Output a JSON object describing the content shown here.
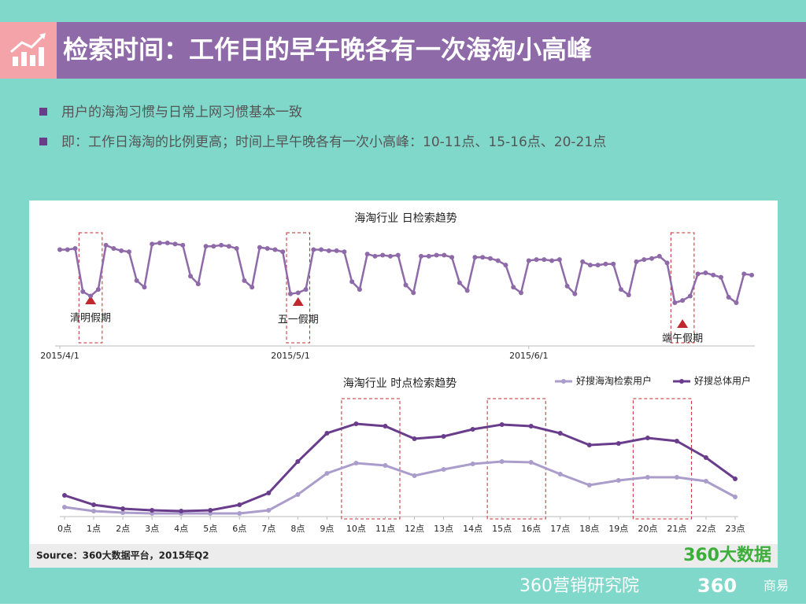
{
  "header": {
    "title": "检索时间：工作日的早午晚各有一次海淘小高峰"
  },
  "bullets": [
    "用户的海淘习惯与日常上网习惯基本一致",
    "即：工作日海淘的比例更高；时间上早午晚各有一次小高峰：10-11点、15-16点、20-21点"
  ],
  "source": "Source：360大数据平台，2015年Q2",
  "logo": "360大数据",
  "footer": [
    "360营销研究院",
    "360",
    "商易"
  ],
  "chart_data": [
    {
      "type": "line",
      "title": "海淘行业 日检索趋势",
      "color": "#8e6aa8",
      "categories": [
        "2015/4/1",
        null,
        null,
        null,
        null,
        null,
        null,
        null,
        null,
        null,
        null,
        null,
        null,
        null,
        null,
        null,
        null,
        null,
        null,
        null,
        null,
        null,
        null,
        null,
        null,
        null,
        null,
        null,
        null,
        null,
        "2015/5/1",
        null,
        null,
        null,
        null,
        null,
        null,
        null,
        null,
        null,
        null,
        null,
        null,
        null,
        null,
        null,
        null,
        null,
        null,
        null,
        null,
        null,
        null,
        null,
        null,
        null,
        null,
        null,
        null,
        null,
        null,
        "2015/6/1",
        null,
        null,
        null,
        null,
        null,
        null,
        null,
        null,
        null,
        null,
        null,
        null,
        null,
        null,
        null,
        null,
        null,
        null,
        null,
        null,
        null,
        null,
        null,
        null,
        null,
        null,
        null,
        null,
        null
      ],
      "values": [
        86,
        86,
        87,
        48,
        44,
        50,
        90,
        87,
        85,
        84,
        58,
        52,
        91,
        92,
        92,
        91,
        90,
        62,
        55,
        89,
        89,
        90,
        89,
        87,
        58,
        52,
        88,
        87,
        86,
        84,
        46,
        47,
        50,
        86,
        86,
        85,
        85,
        84,
        57,
        50,
        82,
        80,
        81,
        80,
        81,
        54,
        47,
        80,
        80,
        81,
        81,
        79,
        56,
        49,
        79,
        79,
        78,
        76,
        72,
        52,
        47,
        76,
        77,
        77,
        76,
        77,
        53,
        46,
        75,
        72,
        72,
        73,
        73,
        50,
        45,
        75,
        77,
        78,
        80,
        74,
        38,
        40,
        44,
        64,
        65,
        63,
        61,
        43,
        38,
        64,
        63
      ],
      "annotations": [
        "清明假期",
        "五一假期",
        "端午假期"
      ]
    },
    {
      "type": "line",
      "title": "海淘行业 时点检索趋势",
      "categories": [
        "0点",
        "1点",
        "2点",
        "3点",
        "4点",
        "5点",
        "6点",
        "7点",
        "8点",
        "9点",
        "10点",
        "11点",
        "12点",
        "13点",
        "14点",
        "15点",
        "16点",
        "17点",
        "18点",
        "19点",
        "20点",
        "21点",
        "22点",
        "23点"
      ],
      "series": [
        {
          "name": "好搜海淘检索用户",
          "color": "#ab9dcb",
          "values": [
            10,
            5,
            3,
            2,
            2,
            2,
            2,
            6,
            26,
            53,
            66,
            63,
            50,
            58,
            65,
            68,
            67,
            52,
            38,
            44,
            48,
            48,
            43,
            23
          ]
        },
        {
          "name": "好搜总体用户",
          "color": "#6a3d8c",
          "values": [
            25,
            13,
            8,
            6,
            5,
            6,
            13,
            28,
            68,
            104,
            116,
            113,
            97,
            100,
            109,
            115,
            113,
            104,
            89,
            91,
            98,
            94,
            73,
            46
          ]
        }
      ]
    }
  ]
}
